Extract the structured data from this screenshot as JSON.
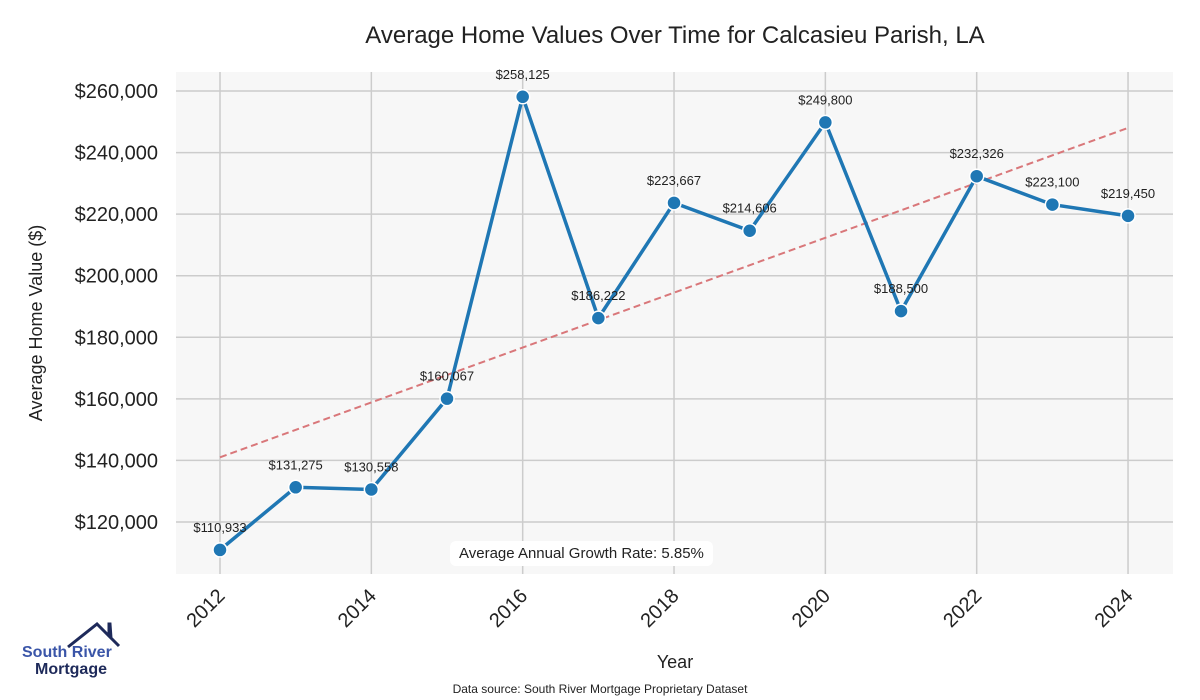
{
  "chart_data": {
    "type": "line",
    "title": "Average Home Values Over Time for Calcasieu Parish, LA",
    "xlabel": "Year",
    "ylabel": "Average Home Value ($)",
    "x": [
      2012,
      2013,
      2014,
      2015,
      2016,
      2017,
      2018,
      2019,
      2020,
      2021,
      2022,
      2023,
      2024
    ],
    "series": [
      {
        "name": "Average Home Value",
        "values": [
          110933,
          131275,
          130558,
          160067,
          258125,
          186222,
          223667,
          214606,
          249800,
          188500,
          232326,
          223100,
          219450
        ],
        "labels": [
          "$110,933",
          "$131,275",
          "$130,558",
          "$160,067",
          "$258,125",
          "$186,222",
          "$223,667",
          "$214,606",
          "$249,800",
          "$188,500",
          "$232,326",
          "$223,100",
          "$219,450"
        ],
        "color": "#1f77b4"
      }
    ],
    "trend": {
      "name": "Trend",
      "start": [
        2012,
        141000
      ],
      "end": [
        2024,
        248000
      ],
      "color": "#d9777a",
      "style": "dashed"
    },
    "xticks": [
      "2012",
      "2014",
      "2016",
      "2018",
      "2020",
      "2022",
      "2024"
    ],
    "yticks": [
      120000,
      140000,
      160000,
      180000,
      200000,
      220000,
      240000,
      260000
    ],
    "ytick_labels": [
      "$120,000",
      "$140,000",
      "$160,000",
      "$180,000",
      "$200,000",
      "$220,000",
      "$240,000",
      "$260,000"
    ],
    "xlim": [
      2011.4,
      2024.6
    ],
    "ylim": [
      103400,
      265900
    ],
    "grid": true,
    "annotation": "Average Annual Growth Rate: 5.85%"
  },
  "source": "Data source: South River Mortgage Proprietary Dataset",
  "logo": {
    "line1": "South River",
    "line2": "Mortgage"
  }
}
